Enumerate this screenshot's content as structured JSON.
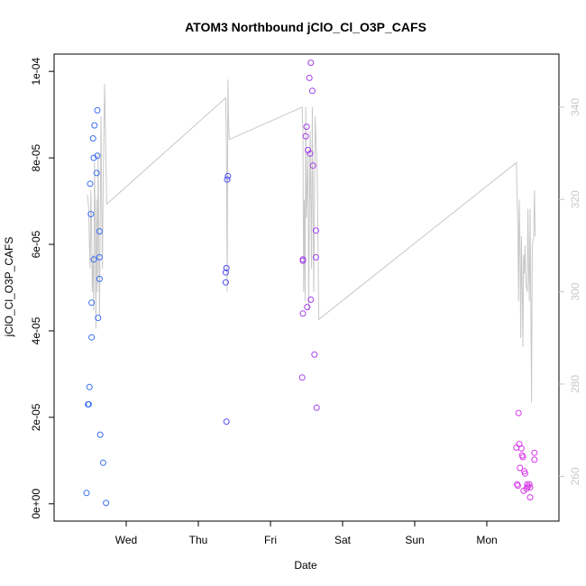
{
  "chart_data": {
    "type": "scatter",
    "title": "ATOM3 Northbound jClO_Cl_O3P_CAFS",
    "xlabel": "Date",
    "ylabel": "jClO_Cl_O3P_CAFS",
    "xlim": [
      0,
      7
    ],
    "ylim": [
      -4e-06,
      0.000104
    ],
    "y2lim": [
      250.3,
      351.5
    ],
    "x_ticks": [
      {
        "value": 1,
        "label": "Wed"
      },
      {
        "value": 2,
        "label": "Thu"
      },
      {
        "value": 3,
        "label": "Fri"
      },
      {
        "value": 4,
        "label": "Sat"
      },
      {
        "value": 5,
        "label": "Sun"
      },
      {
        "value": 6,
        "label": "Mon"
      }
    ],
    "y_ticks": [
      {
        "value": 0,
        "label": "0e+00"
      },
      {
        "value": 2e-05,
        "label": "2e-05"
      },
      {
        "value": 4e-05,
        "label": "4e-05"
      },
      {
        "value": 6e-05,
        "label": "6e-05"
      },
      {
        "value": 8e-05,
        "label": "8e-05"
      },
      {
        "value": 0.0001,
        "label": "1e-04"
      }
    ],
    "y2_ticks": [
      {
        "value": 260,
        "label": "260"
      },
      {
        "value": 280,
        "label": "280"
      },
      {
        "value": 300,
        "label": "300"
      },
      {
        "value": 320,
        "label": "320"
      },
      {
        "value": 340,
        "label": "340"
      }
    ],
    "grid": false,
    "point_color_note": "colors shift blue to magenta over time",
    "points": [
      {
        "x": 0.45,
        "y": 2.5e-06,
        "color": "#3a6ff0"
      },
      {
        "x": 0.47,
        "y": 2.3e-05,
        "color": "#3a6ff0"
      },
      {
        "x": 0.48,
        "y": 2.3e-05,
        "color": "#3a6ff0"
      },
      {
        "x": 0.49,
        "y": 2.7e-05,
        "color": "#3a6ff0"
      },
      {
        "x": 0.5,
        "y": 7.4e-05,
        "color": "#3a6ff0"
      },
      {
        "x": 0.51,
        "y": 6.7e-05,
        "color": "#3a6ff0"
      },
      {
        "x": 0.52,
        "y": 4.65e-05,
        "color": "#3a6ff0"
      },
      {
        "x": 0.52,
        "y": 3.85e-05,
        "color": "#3a6ff0"
      },
      {
        "x": 0.54,
        "y": 8.45e-05,
        "color": "#3a6ff0"
      },
      {
        "x": 0.55,
        "y": 8e-05,
        "color": "#3a6ff0"
      },
      {
        "x": 0.55,
        "y": 5.65e-05,
        "color": "#3a6ff0"
      },
      {
        "x": 0.56,
        "y": 8.75e-05,
        "color": "#3a6ff0"
      },
      {
        "x": 0.59,
        "y": 7.65e-05,
        "color": "#3a6ff0"
      },
      {
        "x": 0.6,
        "y": 9.1e-05,
        "color": "#3a6ff0"
      },
      {
        "x": 0.6,
        "y": 8.05e-05,
        "color": "#3a6ff0"
      },
      {
        "x": 0.61,
        "y": 4.3e-05,
        "color": "#3a6ff0"
      },
      {
        "x": 0.63,
        "y": 6.3e-05,
        "color": "#3a6ff0"
      },
      {
        "x": 0.63,
        "y": 5.7e-05,
        "color": "#3a6ff0"
      },
      {
        "x": 0.63,
        "y": 5.2e-05,
        "color": "#3a6ff0"
      },
      {
        "x": 0.64,
        "y": 1.6e-05,
        "color": "#3a6ff0"
      },
      {
        "x": 0.68,
        "y": 9.5e-06,
        "color": "#3a6ff0"
      },
      {
        "x": 0.72,
        "y": 2e-07,
        "color": "#3a6ff0"
      },
      {
        "x": 2.38,
        "y": 5.35e-05,
        "color": "#4b4cf0"
      },
      {
        "x": 2.38,
        "y": 5.12e-05,
        "color": "#4b4cf0"
      },
      {
        "x": 2.39,
        "y": 1.9e-05,
        "color": "#4b4cf0"
      },
      {
        "x": 2.39,
        "y": 5.45e-05,
        "color": "#4b4cf0"
      },
      {
        "x": 2.4,
        "y": 7.5e-05,
        "color": "#4b4cf0"
      },
      {
        "x": 2.41,
        "y": 7.58e-05,
        "color": "#4b4cf0"
      },
      {
        "x": 3.44,
        "y": 2.92e-05,
        "color": "#a03ee8"
      },
      {
        "x": 3.45,
        "y": 4.4e-05,
        "color": "#a03ee8"
      },
      {
        "x": 3.45,
        "y": 5.62e-05,
        "color": "#a03ee8"
      },
      {
        "x": 3.45,
        "y": 5.65e-05,
        "color": "#a03ee8"
      },
      {
        "x": 3.49,
        "y": 8.5e-05,
        "color": "#a03ee8"
      },
      {
        "x": 3.5,
        "y": 8.72e-05,
        "color": "#a03ee8"
      },
      {
        "x": 3.51,
        "y": 4.55e-05,
        "color": "#a03ee8"
      },
      {
        "x": 3.52,
        "y": 8.18e-05,
        "color": "#a03ee8"
      },
      {
        "x": 3.54,
        "y": 9.85e-05,
        "color": "#a03ee8"
      },
      {
        "x": 3.55,
        "y": 8.1e-05,
        "color": "#a03ee8"
      },
      {
        "x": 3.56,
        "y": 4.72e-05,
        "color": "#a03ee8"
      },
      {
        "x": 3.56,
        "y": 0.000102,
        "color": "#a03ee8"
      },
      {
        "x": 3.58,
        "y": 9.55e-05,
        "color": "#a03ee8"
      },
      {
        "x": 3.59,
        "y": 7.82e-05,
        "color": "#a03ee8"
      },
      {
        "x": 3.61,
        "y": 3.45e-05,
        "color": "#a03ee8"
      },
      {
        "x": 3.63,
        "y": 6.32e-05,
        "color": "#a03ee8"
      },
      {
        "x": 3.63,
        "y": 5.7e-05,
        "color": "#a03ee8"
      },
      {
        "x": 3.64,
        "y": 2.22e-05,
        "color": "#a03ee8"
      },
      {
        "x": 6.41,
        "y": 1.3e-05,
        "color": "#d638e8"
      },
      {
        "x": 6.42,
        "y": 4.5e-06,
        "color": "#d638e8"
      },
      {
        "x": 6.43,
        "y": 4.2e-06,
        "color": "#d638e8"
      },
      {
        "x": 6.44,
        "y": 2.1e-05,
        "color": "#d638e8"
      },
      {
        "x": 6.45,
        "y": 1.38e-05,
        "color": "#d638e8"
      },
      {
        "x": 6.46,
        "y": 8.3e-06,
        "color": "#d638e8"
      },
      {
        "x": 6.48,
        "y": 1.28e-05,
        "color": "#d638e8"
      },
      {
        "x": 6.49,
        "y": 1.12e-05,
        "color": "#d638e8"
      },
      {
        "x": 6.5,
        "y": 1.08e-05,
        "color": "#d638e8"
      },
      {
        "x": 6.51,
        "y": 3e-06,
        "color": "#d638e8"
      },
      {
        "x": 6.52,
        "y": 7.5e-06,
        "color": "#d638e8"
      },
      {
        "x": 6.53,
        "y": 7e-06,
        "color": "#d638e8"
      },
      {
        "x": 6.55,
        "y": 3.5e-06,
        "color": "#d638e8"
      },
      {
        "x": 6.56,
        "y": 4.5e-06,
        "color": "#d638e8"
      },
      {
        "x": 6.57,
        "y": 4e-06,
        "color": "#d638e8"
      },
      {
        "x": 6.59,
        "y": 4.5e-06,
        "color": "#d638e8"
      },
      {
        "x": 6.6,
        "y": 1.5e-06,
        "color": "#d638e8"
      },
      {
        "x": 6.6,
        "y": 3.8e-06,
        "color": "#d638e8"
      },
      {
        "x": 6.66,
        "y": 1.18e-05,
        "color": "#d638e8"
      },
      {
        "x": 6.66,
        "y": 1.02e-05,
        "color": "#d638e8"
      }
    ],
    "line_series": {
      "color": "#c8c8c8",
      "axis": "right",
      "points": [
        [
          0.46,
          321
        ],
        [
          0.47,
          320
        ],
        [
          0.48,
          318
        ],
        [
          0.49,
          310
        ],
        [
          0.5,
          305
        ],
        [
          0.51,
          322
        ],
        [
          0.52,
          314
        ],
        [
          0.53,
          300
        ],
        [
          0.54,
          308
        ],
        [
          0.55,
          296
        ],
        [
          0.56,
          328
        ],
        [
          0.57,
          315
        ],
        [
          0.58,
          292
        ],
        [
          0.59,
          320
        ],
        [
          0.6,
          300
        ],
        [
          0.61,
          330
        ],
        [
          0.62,
          310
        ],
        [
          0.63,
          295
        ],
        [
          0.64,
          315
        ],
        [
          0.65,
          338
        ],
        [
          0.66,
          318
        ],
        [
          0.67,
          305
        ],
        [
          0.68,
          322
        ],
        [
          0.7,
          345
        ],
        [
          0.73,
          319
        ],
        [
          2.38,
          342
        ],
        [
          2.39,
          331
        ],
        [
          2.4,
          300
        ],
        [
          2.41,
          346
        ],
        [
          2.42,
          336
        ],
        [
          2.43,
          333
        ],
        [
          3.44,
          340
        ],
        [
          3.45,
          334
        ],
        [
          3.46,
          300
        ],
        [
          3.47,
          320
        ],
        [
          3.48,
          298
        ],
        [
          3.49,
          340
        ],
        [
          3.5,
          316
        ],
        [
          3.52,
          330
        ],
        [
          3.53,
          296
        ],
        [
          3.55,
          335
        ],
        [
          3.57,
          305
        ],
        [
          3.58,
          340
        ],
        [
          3.6,
          300
        ],
        [
          3.62,
          338
        ],
        [
          3.65,
          325
        ],
        [
          3.67,
          294
        ],
        [
          6.41,
          328
        ],
        [
          6.42,
          320
        ],
        [
          6.43,
          315
        ],
        [
          6.44,
          298
        ],
        [
          6.45,
          320
        ],
        [
          6.46,
          310
        ],
        [
          6.47,
          290
        ],
        [
          6.48,
          312
        ],
        [
          6.49,
          302
        ],
        [
          6.5,
          288
        ],
        [
          6.51,
          308
        ],
        [
          6.52,
          304
        ],
        [
          6.53,
          310
        ],
        [
          6.54,
          302
        ],
        [
          6.56,
          300
        ],
        [
          6.57,
          318
        ],
        [
          6.58,
          305
        ],
        [
          6.59,
          298
        ],
        [
          6.6,
          318
        ],
        [
          6.62,
          276
        ],
        [
          6.63,
          310
        ],
        [
          6.65,
          312
        ],
        [
          6.66,
          322
        ],
        [
          6.67,
          312
        ]
      ]
    }
  }
}
